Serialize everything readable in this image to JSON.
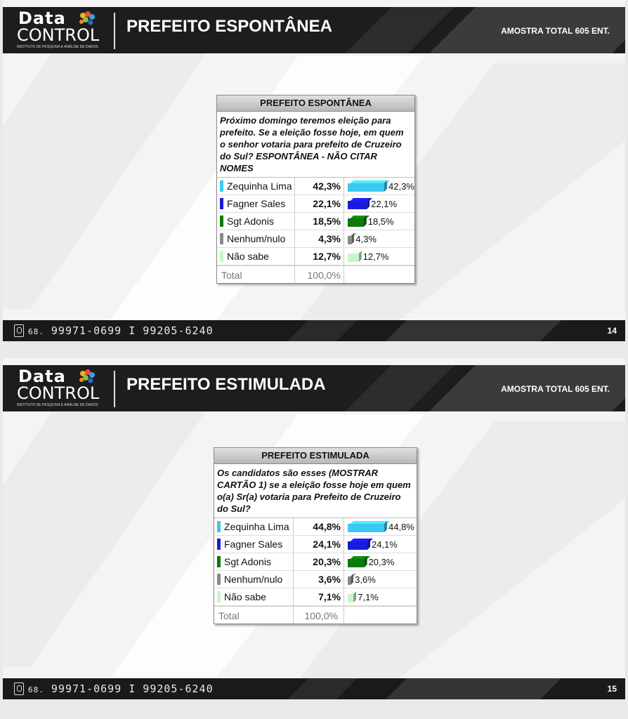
{
  "brand": {
    "logo_top": "Data",
    "logo_bottom": "CONTROL",
    "logo_sub": "INSTITUTO DE PESQUISA E ANÁLISE DE DADOS"
  },
  "footer": {
    "phone_prefix": "68.",
    "phone_numbers": "99971-0699 I 99205-6240"
  },
  "slides": [
    {
      "title": "PREFEITO ESPONTÂNEA",
      "sample": "AMOSTRA TOTAL 605 ENT.",
      "page": "14",
      "table_title": "PREFEITO ESPONTÂNEA",
      "question": "Próximo domingo teremos eleição para prefeito. Se a eleição fosse hoje, em quem o senhor votaria para prefeito de Cruzeiro do Sul? ESPONTÂNEA - NÃO CITAR NOMES",
      "total_label": "Total",
      "total_value": "100,0%"
    },
    {
      "title": "PREFEITO ESTIMULADA",
      "sample": "AMOSTRA TOTAL 605 ENT.",
      "page": "15",
      "table_title": "PREFEITO ESTIMULADA",
      "question": "Os candidatos são esses (MOSTRAR CARTÃO 1) se a eleição fosse hoje em quem o(a) Sr(a) votaria para Prefeito de Cruzeiro do Sul?",
      "total_label": "Total",
      "total_value": "100,0%"
    }
  ],
  "chart_data": [
    {
      "type": "bar",
      "title": "PREFEITO ESPONTÂNEA",
      "categories": [
        "Zequinha Lima",
        "Fagner Sales",
        "Sgt Adonis",
        "Nenhum/nulo",
        "Não sabe"
      ],
      "values": [
        42.3,
        22.1,
        18.5,
        4.3,
        12.7
      ],
      "labels": [
        "42,3%",
        "22,1%",
        "18,5%",
        "4,3%",
        "12,7%"
      ],
      "colors": [
        "#3cc8f0",
        "#1a1adf",
        "#0b7a0b",
        "#8a8a8a",
        "#c8f5c8"
      ],
      "orientation": "horizontal"
    },
    {
      "type": "bar",
      "title": "PREFEITO ESTIMULADA",
      "categories": [
        "Zequinha Lima",
        "Fagner Sales",
        "Sgt Adonis",
        "Nenhum/nulo",
        "Não sabe"
      ],
      "values": [
        44.8,
        24.1,
        20.3,
        3.6,
        7.1
      ],
      "labels": [
        "44,8%",
        "24,1%",
        "20,3%",
        "3,6%",
        "7,1%"
      ],
      "colors": [
        "#3cc8f0",
        "#1a1adf",
        "#0b7a0b",
        "#8a8a8a",
        "#c8f5c8"
      ],
      "orientation": "horizontal"
    }
  ]
}
